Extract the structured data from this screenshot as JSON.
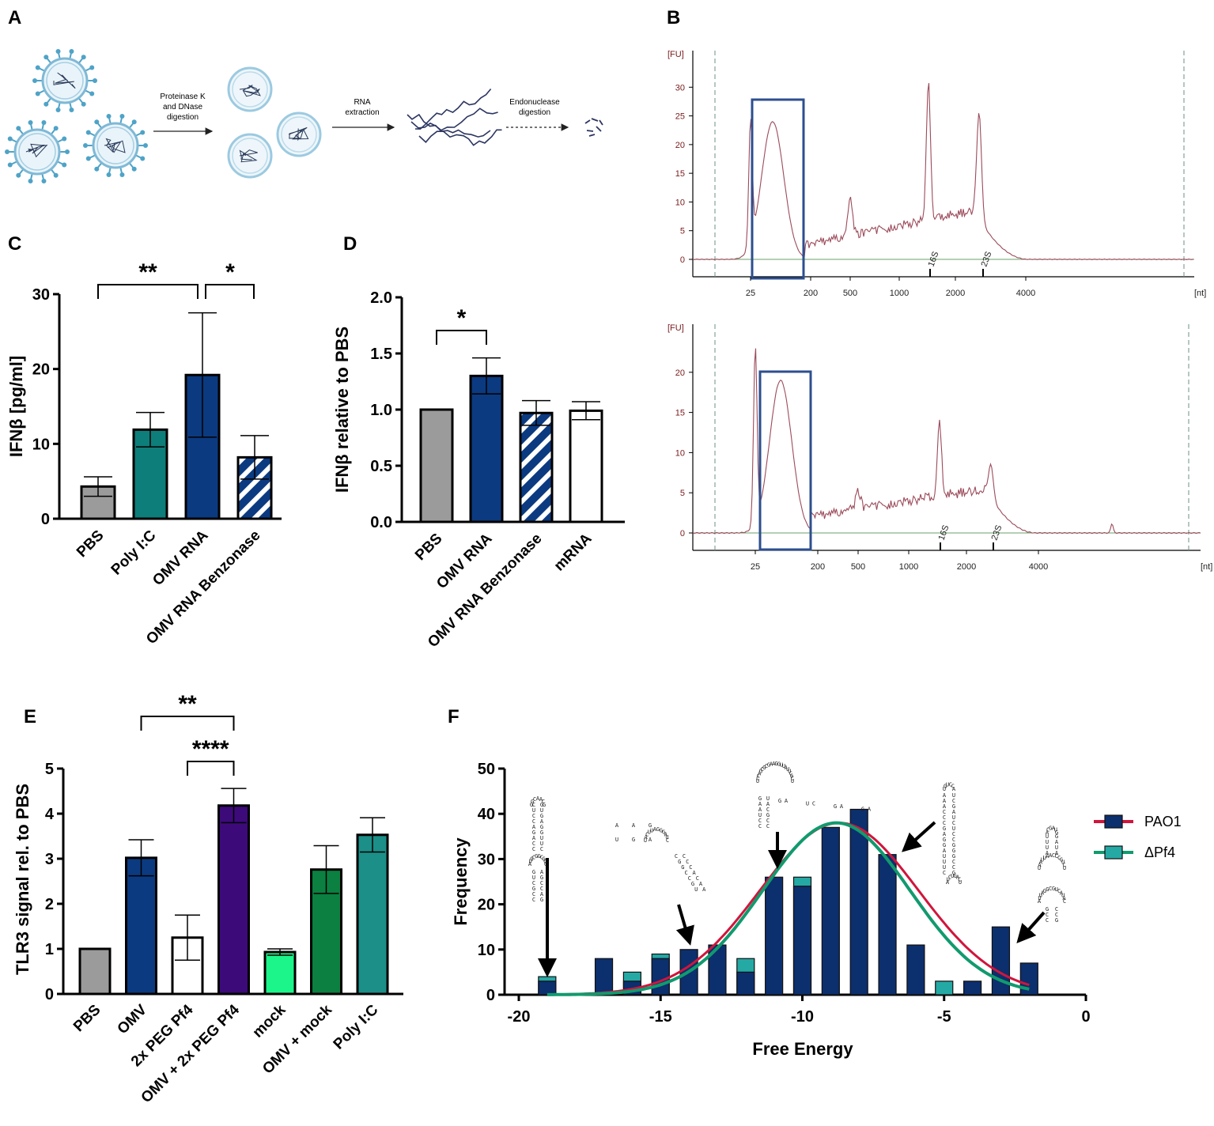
{
  "panels": {
    "A": "A",
    "B": "B",
    "C": "C",
    "D": "D",
    "E": "E",
    "F": "F"
  },
  "schematic": {
    "step1": [
      "Proteinase K",
      "and DNase",
      "digestion"
    ],
    "step2": [
      "RNA",
      "extraction"
    ],
    "step3": [
      "Endonuclease",
      "digestion"
    ]
  },
  "colors": {
    "grey": "#9b9b9b",
    "teal": "#0e7e7a",
    "navy": "#0b3a80",
    "purple": "#3d0a7a",
    "green_bright": "#1cf58a",
    "green_dark": "#0b8040",
    "teal2": "#1b8f88",
    "pao1": "#0c2f6e",
    "dpf4": "#25a9a5",
    "pao1_line": "#d0153c",
    "dpf4_line": "#119a6e",
    "trace": "#9b4b5b",
    "bio_box": "#2d4f8f"
  },
  "chart_data": [
    {
      "id": "B_top",
      "type": "line",
      "title": "",
      "ylabel": "[FU]",
      "xlabel": "[nt]",
      "ylim": [
        0,
        35
      ],
      "yticks": [
        0,
        5,
        10,
        15,
        20,
        25,
        30
      ],
      "xticks": [
        "25",
        "200",
        "500",
        "1000",
        "2000",
        "4000"
      ],
      "markers": [
        "16S",
        "23S"
      ],
      "peaks_approx": [
        {
          "position": "25 nt marker",
          "value": 21.5
        },
        {
          "position": "~50 nt",
          "value": 24
        },
        {
          "position": "~500 nt",
          "value": 10.5
        },
        {
          "position": "~1500 nt (16S)",
          "value": 32
        },
        {
          "position": "~2900 nt (23S)",
          "value": 24.5
        }
      ],
      "highlight": "small RNA region 25-200 nt"
    },
    {
      "id": "B_bottom",
      "type": "line",
      "title": "",
      "ylabel": "[FU]",
      "xlabel": "[nt]",
      "ylim": [
        0,
        22
      ],
      "yticks": [
        0,
        5,
        10,
        15,
        20
      ],
      "xticks": [
        "25",
        "200",
        "500",
        "1000",
        "2000",
        "4000"
      ],
      "markers": [
        "16S",
        "23S"
      ],
      "peaks_approx": [
        {
          "position": "25 nt marker",
          "value": 22
        },
        {
          "position": "~50 nt",
          "value": 19
        },
        {
          "position": "~500 nt",
          "value": 6.3
        },
        {
          "position": "~1500 nt (16S)",
          "value": 14.5
        },
        {
          "position": "~2900 nt (23S)",
          "value": 8
        }
      ],
      "highlight": "small RNA region 25-200 nt"
    },
    {
      "id": "C",
      "type": "bar",
      "ylabel": "IFNβ [pg/ml]",
      "ylim": [
        0,
        30
      ],
      "yticks": [
        "0",
        "10",
        "20",
        "30"
      ],
      "categories": [
        "PBS",
        "Poly I:C",
        "OMV RNA",
        "OMV RNA Benzonase"
      ],
      "values": [
        4.3,
        11.9,
        19.2,
        8.2
      ],
      "errors": [
        1.3,
        2.3,
        8.3,
        2.9
      ],
      "fills": [
        "grey",
        "teal",
        "navy",
        "navy-hatch"
      ],
      "significance": [
        {
          "pair": [
            0,
            2
          ],
          "label": "**"
        },
        {
          "pair": [
            2,
            3
          ],
          "label": "*"
        }
      ]
    },
    {
      "id": "D",
      "type": "bar",
      "ylabel": "IFNβ relative to PBS",
      "ylim": [
        0,
        2.0
      ],
      "yticks": [
        "0.0",
        "0.5",
        "1.0",
        "1.5",
        "2.0"
      ],
      "categories": [
        "PBS",
        "OMV RNA",
        "OMV RNA Benzonase",
        "mRNA"
      ],
      "values": [
        1.0,
        1.3,
        0.97,
        0.99
      ],
      "errors": [
        0,
        0.16,
        0.11,
        0.08
      ],
      "fills": [
        "grey",
        "navy",
        "navy-hatch",
        "white"
      ],
      "significance": [
        {
          "pair": [
            0,
            1
          ],
          "label": "*"
        }
      ]
    },
    {
      "id": "E",
      "type": "bar",
      "ylabel": "TLR3 signal rel. to PBS",
      "ylim": [
        0,
        5
      ],
      "yticks": [
        "0",
        "1",
        "2",
        "3",
        "4",
        "5"
      ],
      "categories": [
        "PBS",
        "OMV",
        "2x PEG Pf4",
        "OMV + 2x PEG Pf4",
        "mock",
        "OMV + mock",
        "Poly I:C"
      ],
      "values": [
        1.0,
        3.02,
        1.25,
        4.18,
        0.93,
        2.76,
        3.53
      ],
      "errors": [
        0,
        0.4,
        0.5,
        0.38,
        0.07,
        0.53,
        0.38
      ],
      "fills": [
        "grey",
        "navy",
        "white",
        "purple",
        "green_bright",
        "green_dark",
        "teal2"
      ],
      "significance": [
        {
          "pair": [
            1,
            3
          ],
          "label": "**"
        },
        {
          "pair": [
            2,
            3
          ],
          "label": "****"
        }
      ]
    },
    {
      "id": "F",
      "type": "bar",
      "xlabel": "Free Energy",
      "ylabel": "Frequency",
      "xlim": [
        -20,
        0
      ],
      "ylim": [
        0,
        50
      ],
      "xticks": [
        "-20",
        "-15",
        "-10",
        "-5",
        "0"
      ],
      "yticks": [
        "0",
        "10",
        "20",
        "30",
        "40",
        "50"
      ],
      "x": [
        -19,
        -17,
        -16,
        -15,
        -14,
        -13,
        -12,
        -11,
        -10,
        -9,
        -8,
        -7,
        -6,
        -5,
        -4,
        -3,
        -2
      ],
      "series": [
        {
          "name": "PAO1",
          "values": [
            3,
            8,
            3,
            8,
            10,
            11,
            5,
            26,
            24,
            37,
            41,
            31,
            11,
            0,
            3,
            15,
            7
          ]
        },
        {
          "name": "ΔPf4",
          "values": [
            4,
            0,
            5,
            9,
            0,
            0,
            8,
            0,
            26,
            0,
            0,
            0,
            0,
            3,
            0,
            0,
            0
          ]
        }
      ],
      "fits": [
        {
          "name": "PAO1",
          "type": "gaussian",
          "mean": -8.7,
          "sd": 2.8,
          "amplitude": 38
        },
        {
          "name": "ΔPf4",
          "type": "gaussian",
          "mean": -8.8,
          "sd": 2.6,
          "amplitude": 38
        }
      ],
      "legend": [
        "PAO1",
        "ΔPf4"
      ],
      "legend_position": "right"
    }
  ]
}
